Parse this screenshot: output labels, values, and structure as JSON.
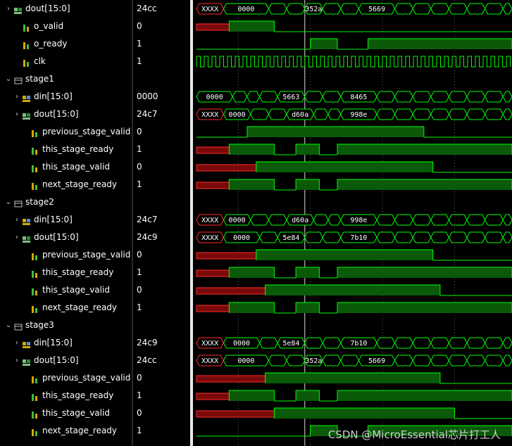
{
  "rows": [
    {
      "name": "dout[15:0]",
      "value": "24cc",
      "indent": 0,
      "expander": "collapsed",
      "icon": "bus-out",
      "type": "bus",
      "segs": [
        {
          "a": 0,
          "b": 1.5,
          "label": "XXXX",
          "color": "red"
        },
        {
          "a": 1.5,
          "b": 4,
          "label": "0000"
        },
        {
          "a": 4,
          "b": 5,
          "label": ""
        },
        {
          "a": 5,
          "b": 6,
          "label": ""
        },
        {
          "a": 6,
          "b": 7,
          "label": "352a"
        },
        {
          "a": 7,
          "b": 8,
          "label": ""
        },
        {
          "a": 8,
          "b": 9,
          "label": ""
        },
        {
          "a": 9,
          "b": 11,
          "label": "5669"
        },
        {
          "a": 11,
          "b": 12,
          "label": ""
        },
        {
          "a": 12,
          "b": 13,
          "label": ""
        },
        {
          "a": 13,
          "b": 14,
          "label": ""
        },
        {
          "a": 14,
          "b": 15,
          "label": ""
        },
        {
          "a": 15,
          "b": 16,
          "label": ""
        },
        {
          "a": 16,
          "b": 17,
          "label": ""
        },
        {
          "a": 17,
          "b": 18,
          "label": ""
        }
      ]
    },
    {
      "name": "o_valid",
      "value": "0",
      "indent": 1,
      "expander": "none",
      "icon": "bit-out",
      "type": "bit",
      "init": "x",
      "edges": [
        1.5,
        4
      ],
      "end": 1
    },
    {
      "name": "o_ready",
      "value": "1",
      "indent": 1,
      "expander": "none",
      "icon": "bit-in",
      "type": "bit",
      "init": 0,
      "edges": [
        6,
        7.5,
        9.2
      ],
      "end": 1
    },
    {
      "name": "clk",
      "value": "1",
      "indent": 1,
      "expander": "none",
      "icon": "bit-in",
      "type": "clock"
    },
    {
      "name": "stage1",
      "value": "",
      "indent": 0,
      "expander": "expanded",
      "icon": "scope",
      "type": "none"
    },
    {
      "name": "din[15:0]",
      "value": "0000",
      "indent": 1,
      "expander": "collapsed",
      "icon": "bus-in",
      "type": "bus",
      "segs": [
        {
          "a": 0,
          "b": 2,
          "label": "0000"
        },
        {
          "a": 2,
          "b": 2.8,
          "label": ""
        },
        {
          "a": 2.8,
          "b": 3.5,
          "label": ""
        },
        {
          "a": 3.5,
          "b": 4.5,
          "label": ""
        },
        {
          "a": 4.5,
          "b": 6,
          "label": "5663"
        },
        {
          "a": 6,
          "b": 7,
          "label": ""
        },
        {
          "a": 7,
          "b": 8,
          "label": ""
        },
        {
          "a": 8,
          "b": 10,
          "label": "8465"
        },
        {
          "a": 10,
          "b": 11,
          "label": ""
        },
        {
          "a": 11,
          "b": 12,
          "label": ""
        },
        {
          "a": 12,
          "b": 13,
          "label": ""
        },
        {
          "a": 13,
          "b": 14,
          "label": ""
        },
        {
          "a": 14,
          "b": 15,
          "label": ""
        },
        {
          "a": 15,
          "b": 16,
          "label": ""
        },
        {
          "a": 16,
          "b": 17,
          "label": ""
        },
        {
          "a": 17,
          "b": 18,
          "label": ""
        }
      ]
    },
    {
      "name": "dout[15:0]",
      "value": "24c7",
      "indent": 1,
      "expander": "collapsed",
      "icon": "bus-out",
      "type": "bus",
      "segs": [
        {
          "a": 0,
          "b": 1.5,
          "label": "XXXX",
          "color": "red"
        },
        {
          "a": 1.5,
          "b": 3,
          "label": "0000"
        },
        {
          "a": 3,
          "b": 4,
          "label": ""
        },
        {
          "a": 4,
          "b": 5,
          "label": ""
        },
        {
          "a": 5,
          "b": 6.5,
          "label": "d60a"
        },
        {
          "a": 6.5,
          "b": 7.3,
          "label": ""
        },
        {
          "a": 7.3,
          "b": 8,
          "label": ""
        },
        {
          "a": 8,
          "b": 10,
          "label": "998e"
        },
        {
          "a": 10,
          "b": 11,
          "label": ""
        },
        {
          "a": 11,
          "b": 12,
          "label": ""
        },
        {
          "a": 12,
          "b": 13,
          "label": ""
        },
        {
          "a": 13,
          "b": 14,
          "label": ""
        },
        {
          "a": 14,
          "b": 15,
          "label": ""
        },
        {
          "a": 15,
          "b": 16,
          "label": ""
        },
        {
          "a": 16,
          "b": 17,
          "label": ""
        },
        {
          "a": 17,
          "b": 18,
          "label": ""
        }
      ]
    },
    {
      "name": "previous_stage_valid",
      "value": "0",
      "indent": 2,
      "expander": "none",
      "icon": "bit-in",
      "type": "bit",
      "init": 0,
      "edges": [
        2.5,
        12.3
      ],
      "end": 0
    },
    {
      "name": "this_stage_ready",
      "value": "1",
      "indent": 2,
      "expander": "none",
      "icon": "bit-out",
      "type": "bit",
      "init": "x",
      "edges": [
        1.5,
        4,
        5.2,
        6.5,
        7.5
      ],
      "end": 1
    },
    {
      "name": "this_stage_valid",
      "value": "0",
      "indent": 2,
      "expander": "none",
      "icon": "bit-out",
      "type": "bit",
      "init": "x",
      "edges": [
        3,
        12.8
      ],
      "end": 0
    },
    {
      "name": "next_stage_ready",
      "value": "1",
      "indent": 2,
      "expander": "none",
      "icon": "bit-in",
      "type": "bit",
      "init": "x",
      "edges": [
        1.5,
        4,
        5.2,
        6.5,
        7.5
      ],
      "end": 1
    },
    {
      "name": "stage2",
      "value": "",
      "indent": 0,
      "expander": "expanded",
      "icon": "scope",
      "type": "none"
    },
    {
      "name": "din[15:0]",
      "value": "24c7",
      "indent": 1,
      "expander": "collapsed",
      "icon": "bus-in",
      "type": "bus",
      "segs": [
        {
          "a": 0,
          "b": 1.5,
          "label": "XXXX",
          "color": "red"
        },
        {
          "a": 1.5,
          "b": 3,
          "label": "0000"
        },
        {
          "a": 3,
          "b": 4,
          "label": ""
        },
        {
          "a": 4,
          "b": 5,
          "label": ""
        },
        {
          "a": 5,
          "b": 6.5,
          "label": "d60a"
        },
        {
          "a": 6.5,
          "b": 7.3,
          "label": ""
        },
        {
          "a": 7.3,
          "b": 8,
          "label": ""
        },
        {
          "a": 8,
          "b": 10,
          "label": "998e"
        },
        {
          "a": 10,
          "b": 11,
          "label": ""
        },
        {
          "a": 11,
          "b": 12,
          "label": ""
        },
        {
          "a": 12,
          "b": 13,
          "label": ""
        },
        {
          "a": 13,
          "b": 14,
          "label": ""
        },
        {
          "a": 14,
          "b": 15,
          "label": ""
        },
        {
          "a": 15,
          "b": 16,
          "label": ""
        },
        {
          "a": 16,
          "b": 17,
          "label": ""
        },
        {
          "a": 17,
          "b": 18,
          "label": ""
        }
      ]
    },
    {
      "name": "dout[15:0]",
      "value": "24c9",
      "indent": 1,
      "expander": "collapsed",
      "icon": "bus-out",
      "type": "bus",
      "segs": [
        {
          "a": 0,
          "b": 1.5,
          "label": "XXXX",
          "color": "red"
        },
        {
          "a": 1.5,
          "b": 3.5,
          "label": "0000"
        },
        {
          "a": 3.5,
          "b": 4.5,
          "label": ""
        },
        {
          "a": 4.5,
          "b": 6,
          "label": "5e84"
        },
        {
          "a": 6,
          "b": 7,
          "label": ""
        },
        {
          "a": 7,
          "b": 8,
          "label": ""
        },
        {
          "a": 8,
          "b": 10,
          "label": "7b10"
        },
        {
          "a": 10,
          "b": 11,
          "label": ""
        },
        {
          "a": 11,
          "b": 12,
          "label": ""
        },
        {
          "a": 12,
          "b": 13,
          "label": ""
        },
        {
          "a": 13,
          "b": 14,
          "label": ""
        },
        {
          "a": 14,
          "b": 15,
          "label": ""
        },
        {
          "a": 15,
          "b": 16,
          "label": ""
        },
        {
          "a": 16,
          "b": 17,
          "label": ""
        },
        {
          "a": 17,
          "b": 18,
          "label": ""
        }
      ]
    },
    {
      "name": "previous_stage_valid",
      "value": "0",
      "indent": 2,
      "expander": "none",
      "icon": "bit-in",
      "type": "bit",
      "init": "x",
      "edges": [
        3,
        12.8
      ],
      "end": 0
    },
    {
      "name": "this_stage_ready",
      "value": "1",
      "indent": 2,
      "expander": "none",
      "icon": "bit-out",
      "type": "bit",
      "init": "x",
      "edges": [
        1.5,
        4,
        5.2,
        6.5,
        7.5
      ],
      "end": 1
    },
    {
      "name": "this_stage_valid",
      "value": "0",
      "indent": 2,
      "expander": "none",
      "icon": "bit-out",
      "type": "bit",
      "init": "x",
      "edges": [
        3.5,
        13.2
      ],
      "end": 0
    },
    {
      "name": "next_stage_ready",
      "value": "1",
      "indent": 2,
      "expander": "none",
      "icon": "bit-in",
      "type": "bit",
      "init": "x",
      "edges": [
        1.5,
        4,
        5.2,
        6.5,
        7.5
      ],
      "end": 1
    },
    {
      "name": "stage3",
      "value": "",
      "indent": 0,
      "expander": "expanded",
      "icon": "scope",
      "type": "none"
    },
    {
      "name": "din[15:0]",
      "value": "24c9",
      "indent": 1,
      "expander": "collapsed",
      "icon": "bus-in",
      "type": "bus",
      "segs": [
        {
          "a": 0,
          "b": 1.5,
          "label": "XXXX",
          "color": "red"
        },
        {
          "a": 1.5,
          "b": 3.5,
          "label": "0000"
        },
        {
          "a": 3.5,
          "b": 4.5,
          "label": ""
        },
        {
          "a": 4.5,
          "b": 6,
          "label": "5e84"
        },
        {
          "a": 6,
          "b": 7,
          "label": ""
        },
        {
          "a": 7,
          "b": 8,
          "label": ""
        },
        {
          "a": 8,
          "b": 10,
          "label": "7b10"
        },
        {
          "a": 10,
          "b": 11,
          "label": ""
        },
        {
          "a": 11,
          "b": 12,
          "label": ""
        },
        {
          "a": 12,
          "b": 13,
          "label": ""
        },
        {
          "a": 13,
          "b": 14,
          "label": ""
        },
        {
          "a": 14,
          "b": 15,
          "label": ""
        },
        {
          "a": 15,
          "b": 16,
          "label": ""
        },
        {
          "a": 16,
          "b": 17,
          "label": ""
        },
        {
          "a": 17,
          "b": 18,
          "label": ""
        }
      ]
    },
    {
      "name": "dout[15:0]",
      "value": "24cc",
      "indent": 1,
      "expander": "collapsed",
      "icon": "bus-out",
      "type": "bus",
      "segs": [
        {
          "a": 0,
          "b": 1.5,
          "label": "XXXX",
          "color": "red"
        },
        {
          "a": 1.5,
          "b": 4,
          "label": "0000"
        },
        {
          "a": 4,
          "b": 5,
          "label": ""
        },
        {
          "a": 5,
          "b": 6,
          "label": ""
        },
        {
          "a": 6,
          "b": 7,
          "label": "352a"
        },
        {
          "a": 7,
          "b": 8,
          "label": ""
        },
        {
          "a": 8,
          "b": 9,
          "label": ""
        },
        {
          "a": 9,
          "b": 11,
          "label": "5669"
        },
        {
          "a": 11,
          "b": 12,
          "label": ""
        },
        {
          "a": 12,
          "b": 13,
          "label": ""
        },
        {
          "a": 13,
          "b": 14,
          "label": ""
        },
        {
          "a": 14,
          "b": 15,
          "label": ""
        },
        {
          "a": 15,
          "b": 16,
          "label": ""
        },
        {
          "a": 16,
          "b": 17,
          "label": ""
        },
        {
          "a": 17,
          "b": 18,
          "label": ""
        }
      ]
    },
    {
      "name": "previous_stage_valid",
      "value": "0",
      "indent": 2,
      "expander": "none",
      "icon": "bit-in",
      "type": "bit",
      "init": "x",
      "edges": [
        3.5,
        13.2
      ],
      "end": 0
    },
    {
      "name": "this_stage_ready",
      "value": "1",
      "indent": 2,
      "expander": "none",
      "icon": "bit-out",
      "type": "bit",
      "init": "x",
      "edges": [
        1.5,
        4,
        5.2,
        6.5,
        7.5
      ],
      "end": 1
    },
    {
      "name": "this_stage_valid",
      "value": "0",
      "indent": 2,
      "expander": "none",
      "icon": "bit-out",
      "type": "bit",
      "init": "x",
      "edges": [
        4,
        14
      ],
      "end": 1
    },
    {
      "name": "next_stage_ready",
      "value": "1",
      "indent": 2,
      "expander": "none",
      "icon": "bit-in",
      "type": "bit",
      "init": 0,
      "edges": [
        6,
        7.5,
        9.2
      ],
      "end": 1
    }
  ],
  "cursor_time": 5.5,
  "colors": {
    "wave": "#00ff00",
    "fill": "#0a5a0a",
    "red": "#ff2a2a",
    "red_fill": "#7a0a0a",
    "grid": "#9a9a9a",
    "cursor": "#dcdcdc"
  },
  "watermark": "CSDN @MicroEssential芯片打工人"
}
